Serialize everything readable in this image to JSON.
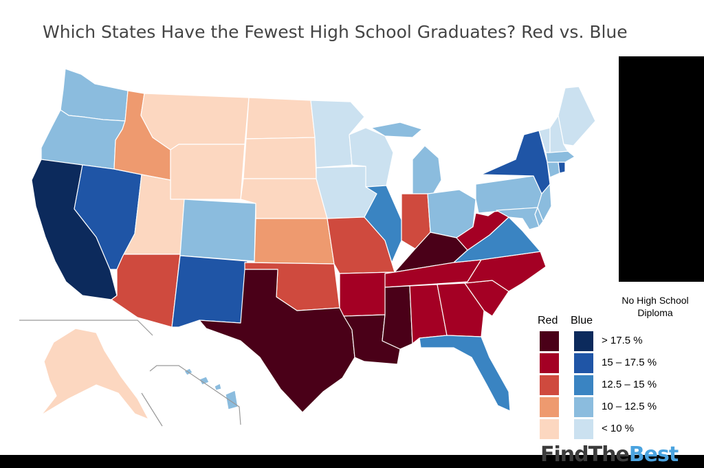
{
  "title": "Which States Have the Fewest High School Graduates? Red vs. Blue",
  "legend": {
    "title_line1": "No High School",
    "title_line2": "Diploma",
    "red_label": "Red",
    "blue_label": "Blue",
    "classes": [
      {
        "range": "> 17.5 %",
        "red": "#4a0018",
        "blue": "#0c2a5c"
      },
      {
        "range": "15 – 17.5 %",
        "red": "#a40024",
        "blue": "#1f55a6"
      },
      {
        "range": "12.5 – 15 %",
        "red": "#cf4a3e",
        "blue": "#3a84c2"
      },
      {
        "range": "10 – 12.5 %",
        "red": "#ee9a6f",
        "blue": "#8bbcde"
      },
      {
        "range": "< 10 %",
        "red": "#fcd7c0",
        "blue": "#cbe1f0"
      }
    ]
  },
  "brand": {
    "part1": "FindThe",
    "part2": "Best"
  },
  "colors": {
    "state_border": "#ffffff",
    "inset_line": "#999999"
  },
  "states": [
    {
      "name": "WA",
      "fill": "#8bbcde"
    },
    {
      "name": "OR",
      "fill": "#8bbcde"
    },
    {
      "name": "CA",
      "fill": "#0c2a5c"
    },
    {
      "name": "NV",
      "fill": "#1f55a6"
    },
    {
      "name": "ID",
      "fill": "#ee9a6f"
    },
    {
      "name": "MT",
      "fill": "#fcd7c0"
    },
    {
      "name": "WY",
      "fill": "#fcd7c0"
    },
    {
      "name": "UT",
      "fill": "#fcd7c0"
    },
    {
      "name": "AZ",
      "fill": "#cf4a3e"
    },
    {
      "name": "CO",
      "fill": "#8bbcde"
    },
    {
      "name": "NM",
      "fill": "#1f55a6"
    },
    {
      "name": "ND",
      "fill": "#fcd7c0"
    },
    {
      "name": "SD",
      "fill": "#fcd7c0"
    },
    {
      "name": "NE",
      "fill": "#fcd7c0"
    },
    {
      "name": "KS",
      "fill": "#ee9a6f"
    },
    {
      "name": "OK",
      "fill": "#cf4a3e"
    },
    {
      "name": "TX",
      "fill": "#4a0018"
    },
    {
      "name": "MN",
      "fill": "#cbe1f0"
    },
    {
      "name": "IA",
      "fill": "#cbe1f0"
    },
    {
      "name": "MO",
      "fill": "#cf4a3e"
    },
    {
      "name": "AR",
      "fill": "#a40024"
    },
    {
      "name": "LA",
      "fill": "#4a0018"
    },
    {
      "name": "WI",
      "fill": "#cbe1f0"
    },
    {
      "name": "IL",
      "fill": "#3a84c2"
    },
    {
      "name": "MI",
      "fill": "#8bbcde"
    },
    {
      "name": "IN",
      "fill": "#cf4a3e"
    },
    {
      "name": "OH",
      "fill": "#8bbcde"
    },
    {
      "name": "KY",
      "fill": "#4a0018"
    },
    {
      "name": "TN",
      "fill": "#a40024"
    },
    {
      "name": "MS",
      "fill": "#4a0018"
    },
    {
      "name": "AL",
      "fill": "#a40024"
    },
    {
      "name": "GA",
      "fill": "#a40024"
    },
    {
      "name": "FL",
      "fill": "#3a84c2"
    },
    {
      "name": "SC",
      "fill": "#a40024"
    },
    {
      "name": "NC",
      "fill": "#a40024"
    },
    {
      "name": "VA",
      "fill": "#3a84c2"
    },
    {
      "name": "WV",
      "fill": "#a40024"
    },
    {
      "name": "PA",
      "fill": "#8bbcde"
    },
    {
      "name": "NY",
      "fill": "#1f55a6"
    },
    {
      "name": "NJ",
      "fill": "#8bbcde"
    },
    {
      "name": "DE",
      "fill": "#8bbcde"
    },
    {
      "name": "MD",
      "fill": "#8bbcde"
    },
    {
      "name": "CT",
      "fill": "#8bbcde"
    },
    {
      "name": "RI",
      "fill": "#1f55a6"
    },
    {
      "name": "MA",
      "fill": "#8bbcde"
    },
    {
      "name": "VT",
      "fill": "#cbe1f0"
    },
    {
      "name": "NH",
      "fill": "#cbe1f0"
    },
    {
      "name": "ME",
      "fill": "#cbe1f0"
    },
    {
      "name": "AK",
      "fill": "#fcd7c0"
    },
    {
      "name": "HI",
      "fill": "#8bbcde"
    }
  ]
}
